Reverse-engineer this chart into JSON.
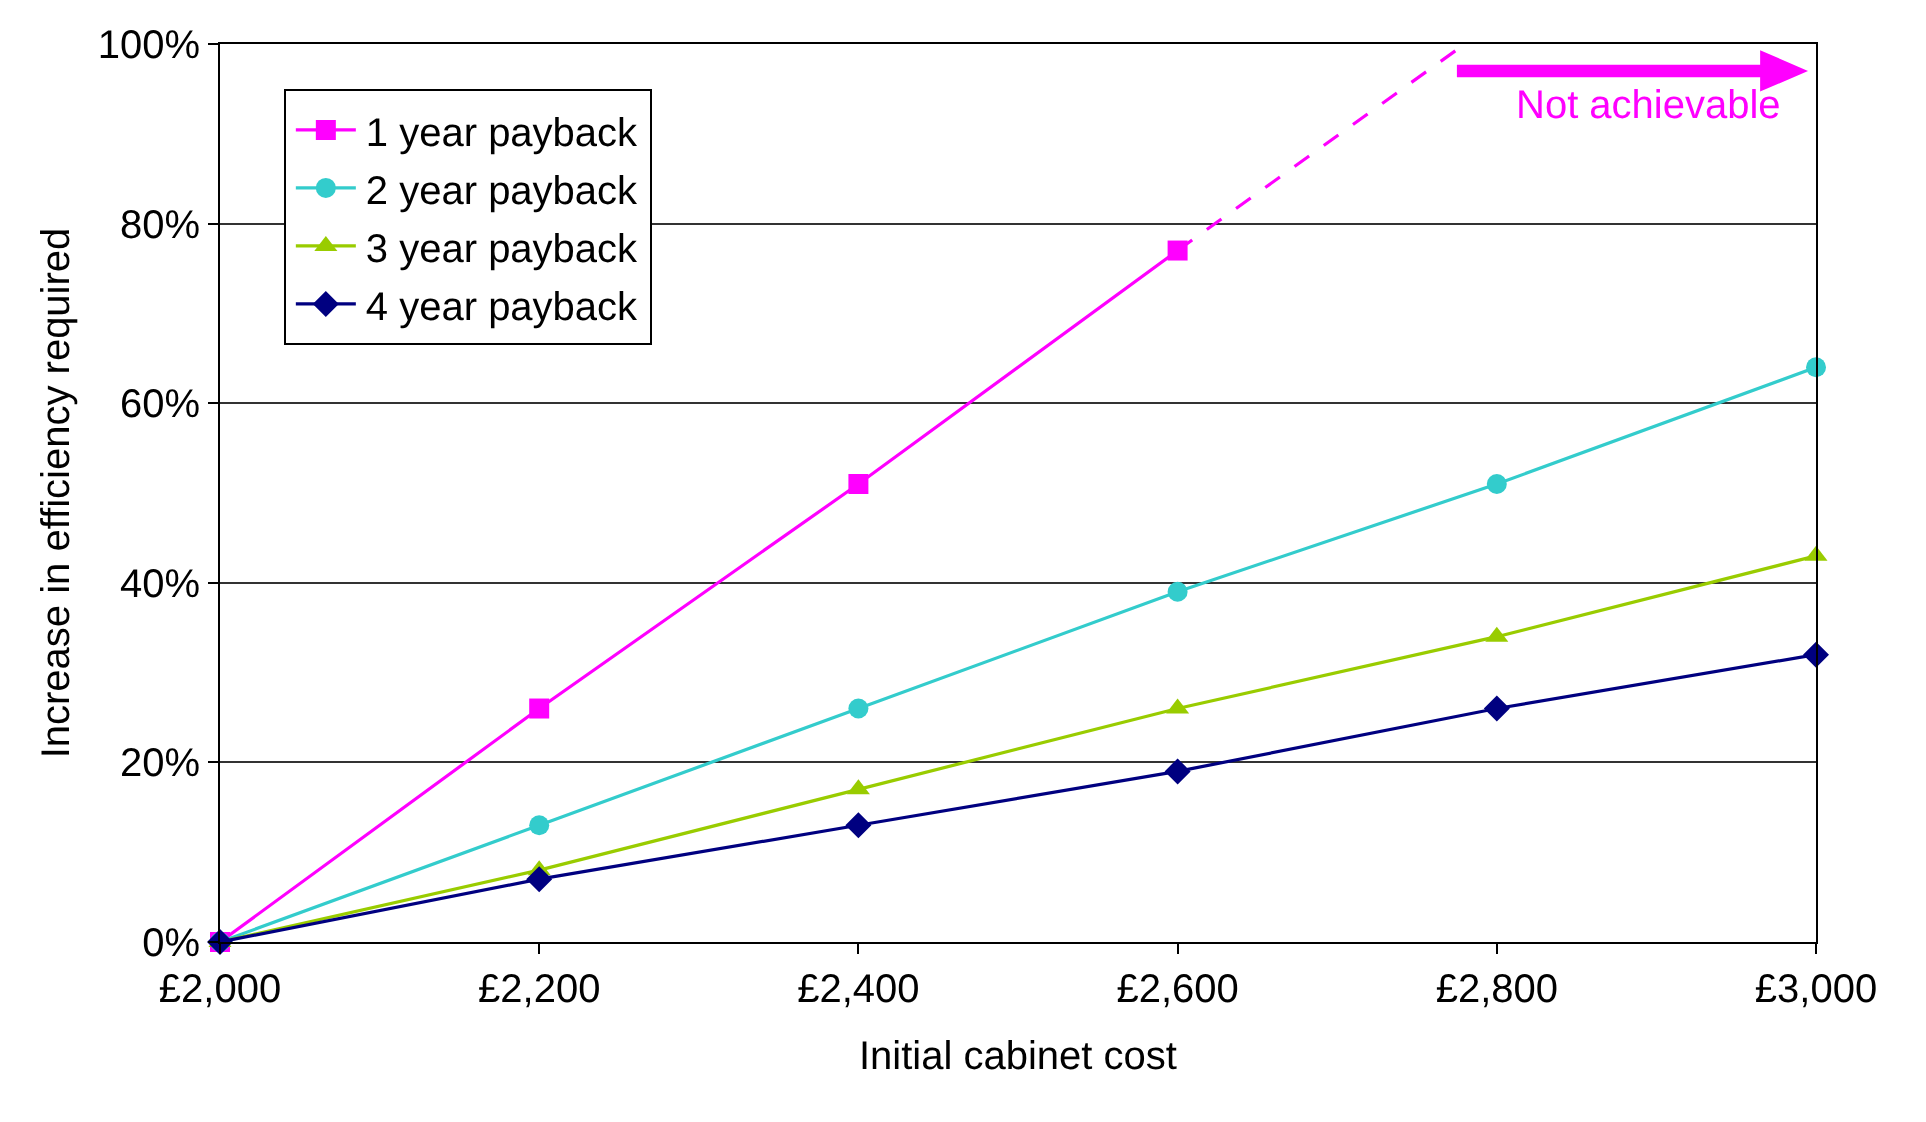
{
  "chart_data": {
    "type": "line",
    "xlabel": "Initial cabinet cost",
    "ylabel": "Increase in efficiency required",
    "x": [
      2000,
      2200,
      2400,
      2600,
      2800,
      3000
    ],
    "xlim": [
      2000,
      3000
    ],
    "xticks": [
      {
        "value": 2000,
        "label": "£2,000"
      },
      {
        "value": 2200,
        "label": "£2,200"
      },
      {
        "value": 2400,
        "label": "£2,400"
      },
      {
        "value": 2600,
        "label": "£2,600"
      },
      {
        "value": 2800,
        "label": "£2,800"
      },
      {
        "value": 3000,
        "label": "£3,000"
      }
    ],
    "ylim": [
      0,
      100
    ],
    "yticks": [
      {
        "value": 0,
        "label": "0%"
      },
      {
        "value": 20,
        "label": "20%"
      },
      {
        "value": 40,
        "label": "40%"
      },
      {
        "value": 60,
        "label": "60%"
      },
      {
        "value": 80,
        "label": "80%"
      },
      {
        "value": 100,
        "label": "100%"
      }
    ],
    "grid": "y",
    "legend": "top left",
    "series": [
      {
        "name": "1 year payback",
        "color": "#ff00ff",
        "marker": "square",
        "values": [
          0,
          26,
          51,
          77,
          null,
          null
        ]
      },
      {
        "name": "2 year payback",
        "color": "#33cccc",
        "marker": "circle",
        "values": [
          0,
          13,
          26,
          39,
          51,
          64
        ]
      },
      {
        "name": "3 year payback",
        "color": "#99cc00",
        "marker": "triangle",
        "values": [
          0,
          8,
          17,
          26,
          34,
          43
        ]
      },
      {
        "name": "4 year payback",
        "color": "#000080",
        "marker": "diamond",
        "values": [
          0,
          7,
          13,
          19,
          26,
          32
        ]
      },
      {
        "color": "#ff00ff",
        "marker": "none",
        "line_style": "dashed",
        "x": [
          2600,
          2780
        ],
        "values": [
          77,
          100
        ]
      }
    ],
    "annotations": [
      "Not achievable"
    ]
  }
}
